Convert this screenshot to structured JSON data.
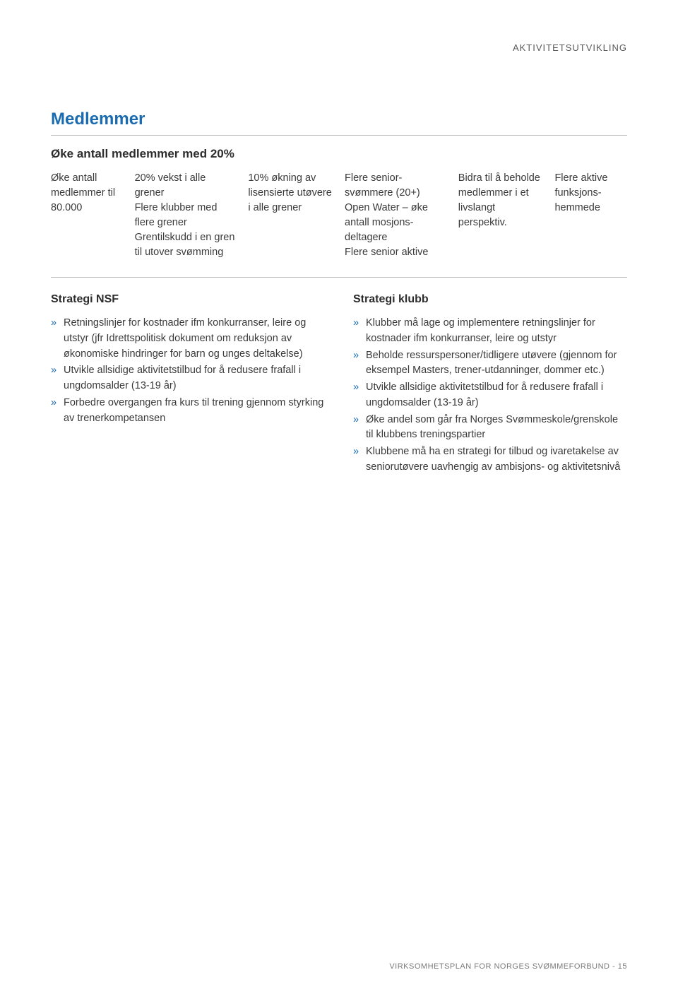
{
  "colors": {
    "accent": "#1a6bb0",
    "text": "#3a3a3a",
    "muted": "#7a7a7a",
    "rule": "#bdbdbd",
    "background": "#ffffff"
  },
  "typography": {
    "body_fontsize_pt": 11,
    "heading_fontsize_pt": 18,
    "font_family": "Arial"
  },
  "header": {
    "category": "AKTIVITETSUTVIKLING"
  },
  "section": {
    "title": "Medlemmer",
    "goal": "Øke antall medlemmer med 20%"
  },
  "table": {
    "columns": [
      {
        "text": "Øke antall medlemmer til 80.000"
      },
      {
        "text": "20% vekst i alle grener\nFlere klubber med flere grener\nGrentilskudd i en gren til utover svømming"
      },
      {
        "text": "10% økning av lisensierte utøvere i alle grener"
      },
      {
        "text": "Flere senior-svømmere (20+)\nOpen Water – øke antall mosjons-deltagere\nFlere senior aktive"
      },
      {
        "text": "Bidra til å beholde medlemmer i et livslangt perspektiv."
      },
      {
        "text": "Flere aktive funksjons-hemmede"
      }
    ]
  },
  "strategy_nsf": {
    "heading": "Strategi NSF",
    "items": [
      "Retningslinjer for kostnader ifm konkurranser, leire og utstyr (jfr Idrettspolitisk dokument om reduksjon av økonomiske hindringer for barn og unges deltakelse)",
      "Utvikle allsidige aktivitetstilbud for å redusere frafall i ungdomsalder (13-19 år)",
      "Forbedre overgangen fra kurs til trening gjennom styrking av trenerkompetansen"
    ]
  },
  "strategy_klubb": {
    "heading": "Strategi klubb",
    "items": [
      "Klubber må lage og implementere retningslinjer for kostnader ifm konkurranser, leire og utstyr",
      "Beholde ressurspersoner/tidligere utøvere (gjennom for eksempel Masters, trener-utdanninger, dommer etc.)",
      "Utvikle allsidige aktivitetstilbud for å redusere frafall i ungdomsalder (13-19 år)",
      "Øke andel som går fra Norges Svømmeskole/grenskole til klubbens treningspartier",
      "Klubbene må ha en strategi for tilbud og ivaretakelse av seniorutøvere uavhengig av ambisjons- og aktivitetsnivå"
    ]
  },
  "footer": {
    "text": "VIRKSOMHETSPLAN FOR NORGES SVØMMEFORBUND - 15"
  }
}
